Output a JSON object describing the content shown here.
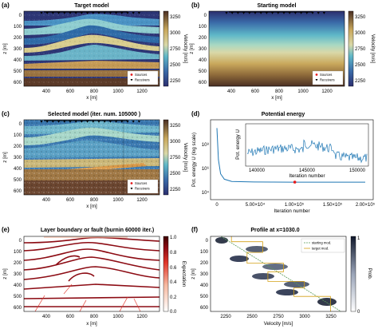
{
  "panels": {
    "a": {
      "letter": "(a)",
      "title": "Target model",
      "xlabel": "x [m]",
      "ylabel": "z [m]",
      "cbar_label": "Velocity [m/s]",
      "legend": [
        "Sources",
        "Receivers"
      ]
    },
    "b": {
      "letter": "(b)",
      "title": "Starting model",
      "xlabel": "x [m]",
      "ylabel": "z [m]",
      "cbar_label": "Velocity [m/s]",
      "legend": [
        "Sources",
        "Receivers"
      ]
    },
    "c": {
      "letter": "(c)",
      "title": "Selected model (iter. num. 105000 )",
      "xlabel": "x [m]",
      "ylabel": "z [m]",
      "cbar_label": "Velocity [m/s]",
      "legend": [
        "Sources",
        "Receivers"
      ]
    },
    "d": {
      "letter": "(d)",
      "title": "Potential energy",
      "xlabel": "Iteration number",
      "ylabel": "Pot. energy U (log scale)",
      "inset_xlabel": "Iteration number",
      "inset_ylabel": "Pot. energy U"
    },
    "e": {
      "letter": "(e)",
      "title": "Layer boundary or fault (burnin 60000 iter.)",
      "xlabel": "x [m]",
      "ylabel": "z [m]",
      "cbar_label": "Expectation"
    },
    "f": {
      "letter": "(f)",
      "title": "Profile at x=1030.0",
      "xlabel": "Velocity [m/s]",
      "ylabel": "z [m]",
      "cbar_label": "Prob.",
      "legend": [
        "starting mod.",
        "target mod."
      ]
    }
  },
  "ticks": {
    "model_x": [
      "400",
      "600",
      "800",
      "1000",
      "1200"
    ],
    "model_z": [
      "0",
      "100",
      "200",
      "300",
      "400",
      "500",
      "600"
    ],
    "velocity_cbar": [
      "3250",
      "3000",
      "2750",
      "2500",
      "2250"
    ],
    "expectation_cbar": [
      "1.0",
      "0.8",
      "0.6",
      "0.4",
      "0.2",
      "0.0"
    ],
    "prob_cbar": [
      "1",
      "0"
    ],
    "energy_x": [
      "0",
      "5.00×10⁴",
      "1.00×10⁵",
      "1.50×10⁵",
      "2.00×10⁵"
    ],
    "energy_y": [
      "10⁸",
      "10⁶",
      "10⁴"
    ],
    "inset_x": [
      "140000",
      "145000",
      "150000"
    ],
    "profile_x": [
      "2250",
      "2500",
      "2750",
      "3000",
      "3250"
    ],
    "profile_z": [
      "0",
      "100",
      "200",
      "300",
      "400",
      "500",
      "600"
    ]
  },
  "chart_data": [
    {
      "type": "heatmap",
      "panel": "a",
      "x_range": [
        200,
        1400
      ],
      "z_range": [
        0,
        700
      ],
      "z_axis": "downward",
      "color_range": [
        2200,
        3400
      ],
      "description_values": "layered fold/fault velocity model"
    },
    {
      "type": "heatmap",
      "panel": "b",
      "x_range": [
        200,
        1400
      ],
      "z_range": [
        0,
        700
      ],
      "color_range": [
        2200,
        3400
      ],
      "gradient": "velocity increases with depth"
    },
    {
      "type": "heatmap",
      "panel": "c",
      "x_range": [
        200,
        1400
      ],
      "z_range": [
        0,
        700
      ],
      "color_range": [
        2200,
        3400
      ]
    },
    {
      "type": "line",
      "panel": "d",
      "x_range": [
        0,
        200000
      ],
      "y_scale": "log",
      "y_range": [
        1000,
        1000000000
      ],
      "series": [
        {
          "x": [
            0,
            2000,
            5000,
            10000,
            20000,
            50000,
            100000,
            200000
          ],
          "y": [
            300000000,
            1000000,
            80000,
            30000,
            20000,
            18000,
            17500,
            17500
          ]
        }
      ],
      "marker_x": 105000
    },
    {
      "type": "heatmap",
      "panel": "e",
      "x_range": [
        200,
        1400
      ],
      "z_range": [
        0,
        700
      ],
      "color_range": [
        0,
        1
      ]
    },
    {
      "type": "line",
      "panel": "f",
      "x_range": [
        2100,
        3400
      ],
      "z_range": [
        0,
        700
      ],
      "series": [
        {
          "name": "starting mod.",
          "x": [
            2200,
            3350
          ],
          "z": [
            0,
            700
          ]
        },
        {
          "name": "target mod.",
          "x": [
            2300,
            2300,
            2600,
            2600,
            2450,
            2450,
            2800,
            2800,
            2650,
            2650,
            3000,
            3000,
            2900,
            2900,
            3250,
            3250
          ],
          "z": [
            0,
            50,
            50,
            150,
            150,
            250,
            250,
            330,
            330,
            420,
            420,
            480,
            480,
            560,
            560,
            700
          ]
        }
      ]
    }
  ],
  "colors": {
    "text": "#000000",
    "accent_line": "#1f77b4",
    "source_marker": "#e41a1c",
    "start_line": "#5a9a5a",
    "target_line": "#d4a017"
  }
}
